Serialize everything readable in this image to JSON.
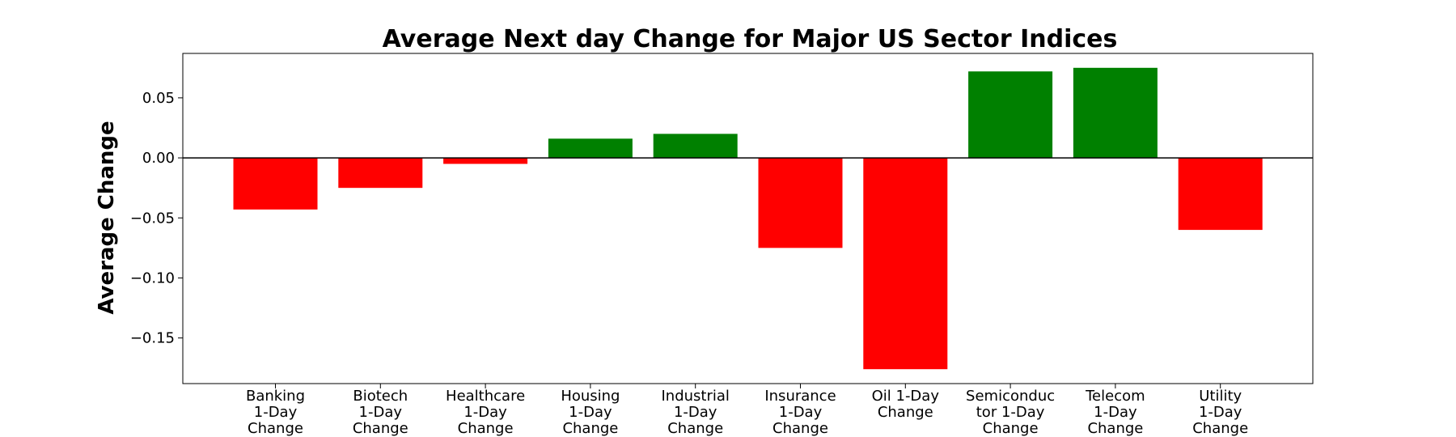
{
  "chart_data": {
    "type": "bar",
    "title": "Average Next day Change for Major US Sector Indices",
    "xlabel": "",
    "ylabel": "Average Change",
    "ylim": [
      -0.188,
      0.087
    ],
    "yticks": [
      0.05,
      0.0,
      -0.05,
      -0.1,
      -0.15
    ],
    "ytick_labels": [
      "0.05",
      "0.00",
      "−0.05",
      "−0.10",
      "−0.15"
    ],
    "zero_line": true,
    "grid": false,
    "categories": [
      [
        "Banking",
        "1-Day",
        "Change"
      ],
      [
        "Biotech",
        "1-Day",
        "Change"
      ],
      [
        "Healthcare",
        "1-Day",
        "Change"
      ],
      [
        "Housing",
        "1-Day",
        "Change"
      ],
      [
        "Industrial",
        "1-Day",
        "Change"
      ],
      [
        "Insurance",
        "1-Day",
        "Change"
      ],
      [
        "Oil 1-Day",
        "Change"
      ],
      [
        "Semiconduc",
        "tor 1-Day",
        "Change"
      ],
      [
        "Telecom",
        "1-Day",
        "Change"
      ],
      [
        "Utility",
        "1-Day",
        "Change"
      ]
    ],
    "values": [
      -0.043,
      -0.025,
      -0.005,
      0.016,
      0.02,
      -0.075,
      -0.176,
      0.072,
      0.075,
      -0.06
    ],
    "colors": {
      "positive": "#008000",
      "negative": "#ff0000"
    }
  }
}
